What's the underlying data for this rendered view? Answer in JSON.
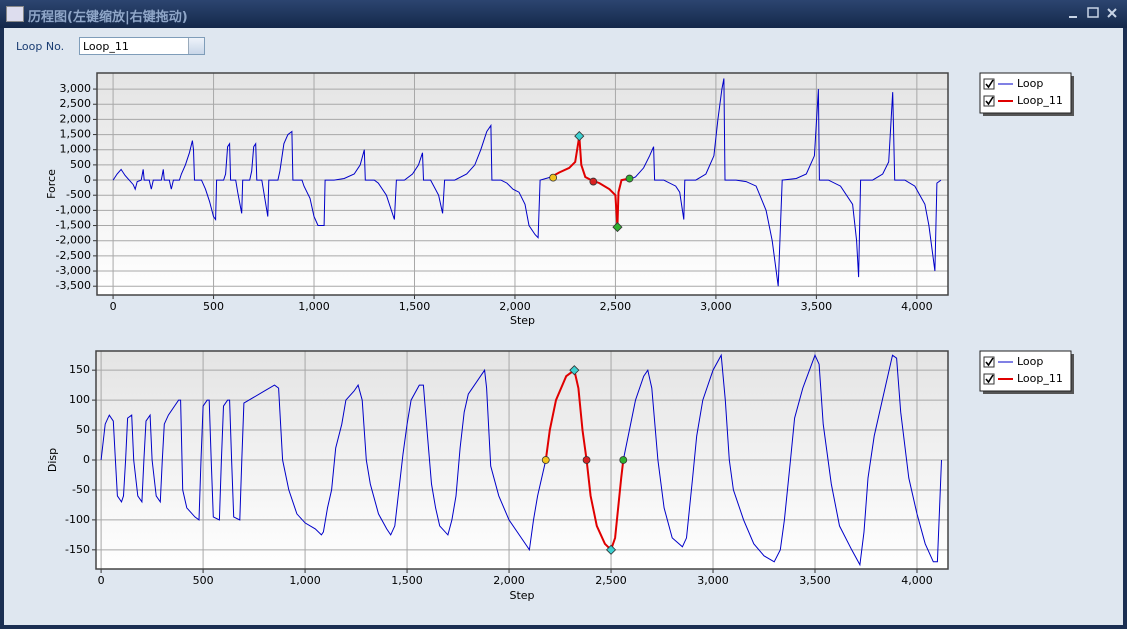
{
  "window": {
    "title": "历程图(左键缩放|右键拖动)"
  },
  "controls": {
    "loop_label": "Loop No.",
    "loop_value": "Loop_11"
  },
  "chart_data": [
    {
      "type": "line",
      "xlabel": "Step",
      "ylabel": "Force",
      "grid": true,
      "legend": "outside-right",
      "xlim": [
        -80,
        4155
      ],
      "ylim": [
        -3790,
        3530
      ],
      "xticks": [
        0,
        500,
        {
          "value": 1000,
          "label": "1,000"
        },
        {
          "value": 1500,
          "label": "1,500"
        },
        {
          "value": 2000,
          "label": "2,000"
        },
        {
          "value": 2500,
          "label": "2,500"
        },
        {
          "value": 3000,
          "label": "3,000"
        },
        {
          "value": 3500,
          "label": "3,500"
        },
        {
          "value": 4000,
          "label": "4,000"
        }
      ],
      "yticks": [
        {
          "value": -3500,
          "label": "-3,500"
        },
        {
          "value": -3000,
          "label": "-3,000"
        },
        {
          "value": -2500,
          "label": "-2,500"
        },
        {
          "value": -2000,
          "label": "-2,000"
        },
        {
          "value": -1500,
          "label": "-1,500"
        },
        {
          "value": -1000,
          "label": "-1,000"
        },
        -500,
        0,
        500,
        {
          "value": 1000,
          "label": "1,000"
        },
        {
          "value": 1500,
          "label": "1,500"
        },
        {
          "value": 2000,
          "label": "2,000"
        },
        {
          "value": 2500,
          "label": "2,500"
        },
        {
          "value": 3000,
          "label": "3,000"
        }
      ],
      "series": [
        {
          "name": "Loop",
          "color": "#0000c8",
          "x": [
            0,
            20,
            40,
            60,
            80,
            100,
            110,
            120,
            140,
            150,
            155,
            180,
            190,
            200,
            240,
            250,
            255,
            280,
            290,
            300,
            330,
            340,
            360,
            380,
            395,
            400,
            405,
            440,
            460,
            480,
            500,
            510,
            515,
            550,
            560,
            570,
            580,
            585,
            610,
            620,
            640,
            645,
            680,
            690,
            700,
            710,
            715,
            740,
            750,
            770,
            775,
            820,
            830,
            850,
            870,
            890,
            895,
            940,
            950,
            980,
            1000,
            1020,
            1050,
            1055,
            1100,
            1150,
            1200,
            1230,
            1250,
            1255,
            1300,
            1320,
            1360,
            1400,
            1410,
            1450,
            1490,
            1520,
            1540,
            1545,
            1580,
            1620,
            1640,
            1650,
            1700,
            1760,
            1800,
            1830,
            1860,
            1880,
            1885,
            1930,
            1960,
            1990,
            2020,
            2050,
            2070,
            2100,
            2115,
            2125,
            2180,
            2220,
            2270,
            2300,
            2320,
            2330,
            2350,
            2380,
            2420,
            2470,
            2500,
            2510,
            2515,
            2530,
            2560,
            2600,
            2640,
            2670,
            2690,
            2695,
            2740,
            2800,
            2820,
            2840,
            2845,
            2900,
            2950,
            2990,
            3010,
            3030,
            3040,
            3045,
            3100,
            3150,
            3200,
            3250,
            3280,
            3300,
            3310,
            3330,
            3400,
            3450,
            3490,
            3510,
            3515,
            3560,
            3620,
            3680,
            3700,
            3710,
            3720,
            3780,
            3830,
            3860,
            3880,
            3890,
            3940,
            3990,
            4040,
            4060,
            4090,
            4100,
            4120
          ],
          "values": [
            0,
            200,
            350,
            150,
            0,
            -150,
            -300,
            -50,
            0,
            350,
            0,
            0,
            -300,
            0,
            0,
            350,
            0,
            0,
            -300,
            0,
            0,
            200,
            500,
            900,
            1300,
            1000,
            0,
            0,
            -300,
            -700,
            -1200,
            -1300,
            0,
            0,
            200,
            1100,
            1200,
            0,
            0,
            -400,
            -1100,
            0,
            0,
            300,
            1100,
            1200,
            0,
            0,
            -400,
            -1200,
            0,
            0,
            300,
            1200,
            1500,
            1600,
            0,
            0,
            -200,
            -600,
            -1200,
            -1500,
            -1500,
            0,
            0,
            50,
            200,
            500,
            1000,
            0,
            0,
            -100,
            -500,
            -1300,
            0,
            0,
            200,
            500,
            900,
            0,
            0,
            -500,
            -1100,
            0,
            0,
            200,
            500,
            1000,
            1600,
            1800,
            0,
            0,
            -100,
            -300,
            -400,
            -800,
            -1500,
            -1800,
            -1900,
            0,
            100,
            250,
            400,
            600,
            1450,
            500,
            100,
            0,
            -100,
            -300,
            -500,
            -1550,
            -400,
            0,
            0,
            100,
            400,
            800,
            1100,
            0,
            0,
            -200,
            -400,
            -1300,
            0,
            0,
            200,
            800,
            2000,
            3000,
            3350,
            0,
            0,
            -50,
            -200,
            -1000,
            -2000,
            -3000,
            -3500,
            0,
            50,
            200,
            800,
            3000,
            0,
            0,
            -200,
            -800,
            -2000,
            -3200,
            0,
            0,
            200,
            600,
            2900,
            0,
            0,
            -200,
            -800,
            -1500,
            -3000,
            -100,
            0
          ]
        },
        {
          "name": "Loop_11",
          "color": "#e00000",
          "x": [
            2180,
            2220,
            2270,
            2300,
            2320,
            2330,
            2350,
            2380,
            2420,
            2470,
            2500,
            2510,
            2515,
            2530,
            2570
          ],
          "values": [
            100,
            250,
            400,
            600,
            1450,
            500,
            100,
            0,
            -100,
            -300,
            -500,
            -1550,
            -400,
            0,
            50
          ]
        }
      ],
      "key_points": {
        "x": [
          2190,
          2320,
          2390,
          2510,
          2570
        ],
        "values": [
          80,
          1450,
          -50,
          -1550,
          50
        ],
        "colors": [
          "#f2c21c",
          "#3cd0d0",
          "#d82020",
          "#30b030",
          "#30b030"
        ],
        "shapes": [
          "circle",
          "diamond",
          "circle",
          "diamond",
          "circle"
        ]
      }
    },
    {
      "type": "line",
      "xlabel": "Step",
      "ylabel": "Disp",
      "grid": true,
      "legend": "outside-right",
      "xlim": [
        -25,
        4152
      ],
      "ylim": [
        -182,
        182
      ],
      "xticks": [
        0,
        500,
        {
          "value": 1000,
          "label": "1,000"
        },
        {
          "value": 1500,
          "label": "1,500"
        },
        {
          "value": 2000,
          "label": "2,000"
        },
        {
          "value": 2500,
          "label": "2,500"
        },
        {
          "value": 3000,
          "label": "3,000"
        },
        {
          "value": 3500,
          "label": "3,500"
        },
        {
          "value": 4000,
          "label": "4,000"
        }
      ],
      "yticks": [
        -150,
        -100,
        -50,
        0,
        50,
        100,
        150
      ],
      "series": [
        {
          "name": "Loop",
          "color": "#0000c8",
          "x": [
            0,
            20,
            40,
            60,
            70,
            80,
            100,
            110,
            120,
            130,
            150,
            160,
            180,
            200,
            210,
            220,
            240,
            250,
            270,
            290,
            300,
            310,
            330,
            360,
            380,
            390,
            400,
            420,
            460,
            480,
            490,
            500,
            520,
            530,
            540,
            550,
            580,
            590,
            600,
            620,
            630,
            640,
            650,
            680,
            690,
            700,
            750,
            800,
            850,
            870,
            890,
            920,
            960,
            1000,
            1050,
            1080,
            1090,
            1110,
            1130,
            1150,
            1180,
            1200,
            1240,
            1260,
            1280,
            1300,
            1320,
            1360,
            1400,
            1420,
            1440,
            1460,
            1480,
            1500,
            1520,
            1560,
            1580,
            1600,
            1620,
            1640,
            1660,
            1700,
            1720,
            1740,
            1760,
            1780,
            1800,
            1860,
            1880,
            1890,
            1910,
            1950,
            2000,
            2060,
            2100,
            2120,
            2140,
            2180,
            2200,
            2230,
            2280,
            2320,
            2340,
            2360,
            2380,
            2400,
            2430,
            2470,
            2500,
            2520,
            2550,
            2560,
            2590,
            2620,
            2660,
            2680,
            2700,
            2730,
            2760,
            2800,
            2850,
            2870,
            2900,
            2920,
            2950,
            3000,
            3040,
            3060,
            3080,
            3100,
            3150,
            3200,
            3250,
            3300,
            3330,
            3350,
            3380,
            3400,
            3440,
            3500,
            3520,
            3540,
            3580,
            3620,
            3680,
            3720,
            3740,
            3760,
            3790,
            3830,
            3880,
            3900,
            3920,
            3960,
            4000,
            4040,
            4080,
            4100,
            4120
          ],
          "values": [
            0,
            60,
            75,
            65,
            0,
            -60,
            -70,
            -60,
            0,
            70,
            75,
            0,
            -60,
            -70,
            0,
            65,
            75,
            0,
            -60,
            -70,
            0,
            60,
            75,
            90,
            100,
            100,
            -50,
            -80,
            -95,
            -100,
            0,
            90,
            100,
            100,
            0,
            -95,
            -100,
            0,
            90,
            100,
            100,
            0,
            -95,
            -100,
            0,
            95,
            105,
            115,
            125,
            120,
            0,
            -50,
            -90,
            -105,
            -115,
            -125,
            -120,
            -80,
            -50,
            20,
            60,
            100,
            115,
            125,
            100,
            0,
            -40,
            -90,
            -115,
            -125,
            -110,
            -50,
            10,
            60,
            100,
            125,
            125,
            40,
            -40,
            -80,
            -110,
            -125,
            -100,
            -60,
            20,
            80,
            110,
            140,
            150,
            120,
            -10,
            -60,
            -100,
            -130,
            -150,
            -100,
            -60,
            0,
            50,
            100,
            140,
            150,
            120,
            50,
            0,
            -60,
            -110,
            -140,
            -150,
            -130,
            -30,
            0,
            50,
            100,
            140,
            150,
            120,
            0,
            -80,
            -130,
            -145,
            -130,
            -30,
            40,
            100,
            150,
            175,
            100,
            0,
            -50,
            -100,
            -140,
            -160,
            -170,
            -150,
            -100,
            0,
            70,
            120,
            175,
            160,
            60,
            -40,
            -110,
            -150,
            -175,
            -120,
            -30,
            40,
            100,
            175,
            170,
            80,
            -30,
            -90,
            -140,
            -170,
            -170,
            0
          ]
        },
        {
          "name": "Loop_11",
          "color": "#e00000",
          "x": [
            2180,
            2200,
            2230,
            2280,
            2320,
            2340,
            2360,
            2380,
            2400,
            2430,
            2470,
            2500,
            2520,
            2550,
            2560
          ],
          "values": [
            0,
            50,
            100,
            140,
            150,
            120,
            50,
            0,
            -60,
            -110,
            -140,
            -150,
            -130,
            -30,
            0
          ]
        }
      ],
      "key_points": {
        "x": [
          2180,
          2320,
          2380,
          2500,
          2560
        ],
        "values": [
          0,
          150,
          0,
          -150,
          0
        ],
        "colors": [
          "#f2c21c",
          "#3cd0d0",
          "#d82020",
          "#3cd0d0",
          "#30b030"
        ],
        "shapes": [
          "circle",
          "diamond",
          "circle",
          "diamond",
          "circle"
        ]
      }
    }
  ]
}
